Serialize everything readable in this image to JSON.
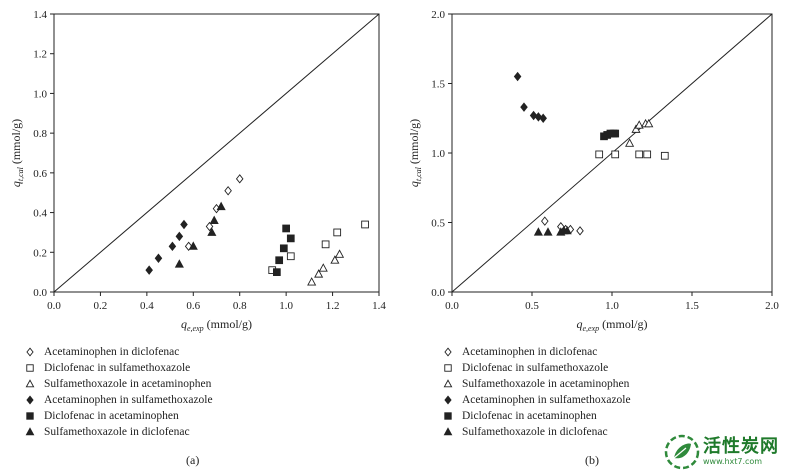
{
  "chart_data": [
    {
      "type": "scatter",
      "panel_label": "(a)",
      "xlabel": {
        "main": "q",
        "sub": "e,exp",
        "unit": " (mmol/g)"
      },
      "ylabel": {
        "main": "q",
        "sub": "t,cal",
        "unit": " (mmol/g)"
      },
      "xlim": [
        0,
        1.4
      ],
      "ylim": [
        0,
        1.4
      ],
      "xticks": [
        "0.0",
        "0.2",
        "0.4",
        "0.6",
        "0.8",
        "1.0",
        "1.2",
        "1.4"
      ],
      "yticks": [
        "0.0",
        "0.2",
        "0.4",
        "0.6",
        "0.8",
        "1.0",
        "1.2",
        "1.4"
      ],
      "reference_line": "y = x",
      "series": [
        {
          "name": "Acetaminophen in diclofenac",
          "marker": "diamond-open",
          "points": [
            [
              0.58,
              0.23
            ],
            [
              0.67,
              0.33
            ],
            [
              0.7,
              0.42
            ],
            [
              0.75,
              0.51
            ],
            [
              0.8,
              0.57
            ]
          ]
        },
        {
          "name": "Diclofenac in sulfamethoxazole",
          "marker": "square-open",
          "points": [
            [
              0.94,
              0.11
            ],
            [
              1.02,
              0.18
            ],
            [
              1.17,
              0.24
            ],
            [
              1.22,
              0.3
            ],
            [
              1.34,
              0.34
            ]
          ]
        },
        {
          "name": "Sulfamethoxazole in acetaminophen",
          "marker": "triangle-open",
          "points": [
            [
              1.11,
              0.05
            ],
            [
              1.14,
              0.09
            ],
            [
              1.16,
              0.12
            ],
            [
              1.21,
              0.16
            ],
            [
              1.23,
              0.19
            ]
          ]
        },
        {
          "name": "Acetaminophen in sulfamethoxazole",
          "marker": "diamond-filled",
          "points": [
            [
              0.41,
              0.11
            ],
            [
              0.45,
              0.17
            ],
            [
              0.51,
              0.23
            ],
            [
              0.54,
              0.28
            ],
            [
              0.56,
              0.34
            ]
          ]
        },
        {
          "name": "Diclofenac in acetaminophen",
          "marker": "square-filled",
          "points": [
            [
              0.96,
              0.1
            ],
            [
              0.97,
              0.16
            ],
            [
              0.99,
              0.22
            ],
            [
              1.0,
              0.32
            ],
            [
              1.02,
              0.27
            ]
          ]
        },
        {
          "name": "Sulfamethoxazole in diclofenac",
          "marker": "triangle-filled",
          "points": [
            [
              0.54,
              0.14
            ],
            [
              0.6,
              0.23
            ],
            [
              0.68,
              0.3
            ],
            [
              0.69,
              0.36
            ],
            [
              0.72,
              0.43
            ]
          ]
        }
      ]
    },
    {
      "type": "scatter",
      "panel_label": "(b)",
      "xlabel": {
        "main": "q",
        "sub": "e,exp",
        "unit": " (mmol/g)"
      },
      "ylabel": {
        "main": "q",
        "sub": "t,cal",
        "unit": " (mmol/g)"
      },
      "xlim": [
        0,
        2.0
      ],
      "ylim": [
        0,
        2.0
      ],
      "xticks": [
        "0.0",
        "0.5",
        "1.0",
        "1.5",
        "2.0"
      ],
      "yticks": [
        "0.0",
        "0.5",
        "1.0",
        "1.5",
        "2.0"
      ],
      "reference_line": "y = x",
      "series": [
        {
          "name": "Acetaminophen in diclofenac",
          "marker": "diamond-open",
          "points": [
            [
              0.58,
              0.51
            ],
            [
              0.68,
              0.47
            ],
            [
              0.71,
              0.45
            ],
            [
              0.74,
              0.45
            ],
            [
              0.8,
              0.44
            ]
          ]
        },
        {
          "name": "Diclofenac in sulfamethoxazole",
          "marker": "square-open",
          "points": [
            [
              0.92,
              0.99
            ],
            [
              1.02,
              0.99
            ],
            [
              1.17,
              0.99
            ],
            [
              1.22,
              0.99
            ],
            [
              1.33,
              0.98
            ]
          ]
        },
        {
          "name": "Sulfamethoxazole in acetaminophen",
          "marker": "triangle-open",
          "points": [
            [
              1.11,
              1.07
            ],
            [
              1.15,
              1.17
            ],
            [
              1.17,
              1.2
            ],
            [
              1.21,
              1.21
            ],
            [
              1.23,
              1.21
            ]
          ]
        },
        {
          "name": "Acetaminophen in sulfamethoxazole",
          "marker": "diamond-filled",
          "points": [
            [
              0.41,
              1.55
            ],
            [
              0.45,
              1.33
            ],
            [
              0.51,
              1.27
            ],
            [
              0.54,
              1.26
            ],
            [
              0.57,
              1.25
            ]
          ]
        },
        {
          "name": "Diclofenac in acetaminophen",
          "marker": "square-filled",
          "points": [
            [
              0.95,
              1.12
            ],
            [
              0.97,
              1.13
            ],
            [
              0.99,
              1.14
            ],
            [
              1.01,
              1.14
            ],
            [
              1.02,
              1.14
            ]
          ]
        },
        {
          "name": "Sulfamethoxazole in diclofenac",
          "marker": "triangle-filled",
          "points": [
            [
              0.54,
              0.43
            ],
            [
              0.6,
              0.43
            ],
            [
              0.68,
              0.43
            ],
            [
              0.7,
              0.44
            ],
            [
              0.72,
              0.44
            ]
          ]
        }
      ]
    }
  ],
  "legend": [
    {
      "label": "Acetaminophen in diclofenac",
      "marker": "diamond-open"
    },
    {
      "label": "Diclofenac in sulfamethoxazole",
      "marker": "square-open"
    },
    {
      "label": "Sulfamethoxazole in acetaminophen",
      "marker": "triangle-open"
    },
    {
      "label": "Acetaminophen in sulfamethoxazole",
      "marker": "diamond-filled"
    },
    {
      "label": "Diclofenac in acetaminophen",
      "marker": "square-filled"
    },
    {
      "label": "Sulfamethoxazole in diclofenac",
      "marker": "triangle-filled"
    }
  ],
  "watermark": {
    "title": "活性炭网",
    "url": "www.hxt7.com"
  },
  "colors": {
    "ink": "#222222",
    "watermark_green": "#1f7a2b"
  }
}
